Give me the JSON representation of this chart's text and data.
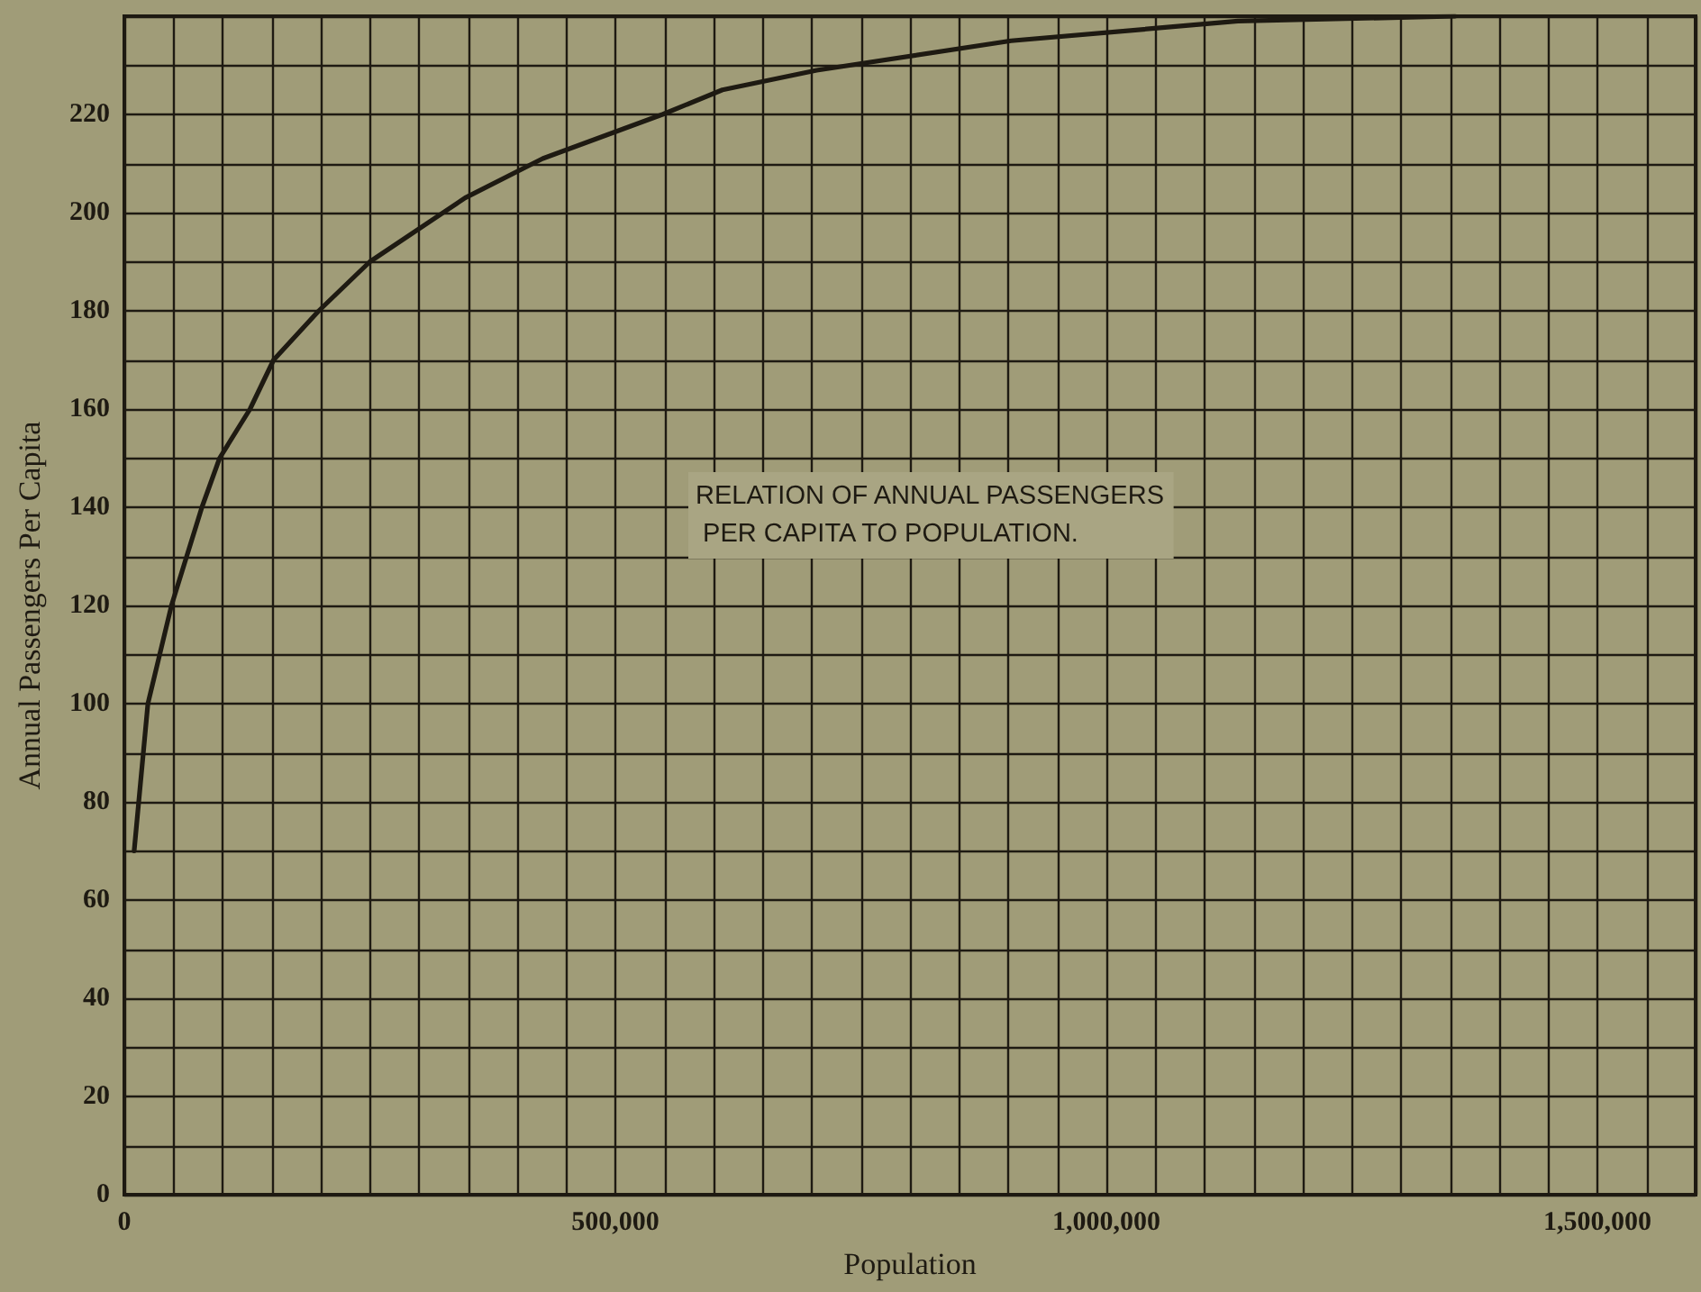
{
  "chart_data": {
    "type": "line",
    "xlabel": "Population",
    "ylabel": "Annual Passengers Per Capita",
    "annotations": [
      "RELATION OF ANNUAL PASSENGERS\n PER CAPITA TO POPULATION."
    ],
    "x": [
      10000,
      24000,
      48000,
      79000,
      97000,
      128000,
      152000,
      198000,
      250000,
      347000,
      426000,
      548000,
      609000,
      705000,
      903000,
      1134000,
      1355000
    ],
    "series": [
      {
        "color": "#1e1a12",
        "values": [
          70,
          100,
          120,
          140,
          150,
          160,
          170,
          180,
          190,
          203,
          211,
          220,
          225,
          229,
          235,
          239,
          240
        ]
      }
    ],
    "xlim": [
      0,
      1600000
    ],
    "ylim": [
      0,
      240
    ],
    "xticks": [
      0,
      {
        "value": 50000,
        "label": null
      },
      {
        "value": 100000,
        "label": null
      },
      {
        "value": 150000,
        "label": null
      },
      {
        "value": 200000,
        "label": null
      },
      {
        "value": 250000,
        "label": null
      },
      {
        "value": 300000,
        "label": null
      },
      {
        "value": 350000,
        "label": null
      },
      {
        "value": 400000,
        "label": null
      },
      {
        "value": 450000,
        "label": null
      },
      {
        "value": 500000,
        "label": "500,000"
      },
      {
        "value": 550000,
        "label": null
      },
      {
        "value": 600000,
        "label": null
      },
      {
        "value": 650000,
        "label": null
      },
      {
        "value": 700000,
        "label": null
      },
      {
        "value": 750000,
        "label": null
      },
      {
        "value": 800000,
        "label": null
      },
      {
        "value": 850000,
        "label": null
      },
      {
        "value": 900000,
        "label": null
      },
      {
        "value": 950000,
        "label": null
      },
      {
        "value": 1000000,
        "label": "1,000,000"
      },
      {
        "value": 1050000,
        "label": null
      },
      {
        "value": 1100000,
        "label": null
      },
      {
        "value": 1150000,
        "label": null
      },
      {
        "value": 1200000,
        "label": null
      },
      {
        "value": 1250000,
        "label": null
      },
      {
        "value": 1300000,
        "label": null
      },
      {
        "value": 1350000,
        "label": null
      },
      {
        "value": 1400000,
        "label": null
      },
      {
        "value": 1450000,
        "label": null
      },
      {
        "value": 1500000,
        "label": "1,500,000"
      },
      {
        "value": 1550000,
        "label": null
      },
      {
        "value": 1600000,
        "label": null
      }
    ],
    "yticks": [
      0,
      {
        "value": 10,
        "label": null
      },
      20,
      {
        "value": 30,
        "label": null
      },
      40,
      {
        "value": 50,
        "label": null
      },
      60,
      {
        "value": 70,
        "label": null
      },
      80,
      {
        "value": 90,
        "label": null
      },
      100,
      {
        "value": 110,
        "label": null
      },
      120,
      {
        "value": 130,
        "label": null
      },
      140,
      {
        "value": 150,
        "label": null
      },
      160,
      {
        "value": 170,
        "label": null
      },
      180,
      {
        "value": 190,
        "label": null
      },
      200,
      {
        "value": 210,
        "label": null
      },
      220,
      {
        "value": 230,
        "label": null
      },
      {
        "value": 240,
        "label": null
      }
    ],
    "grid": true,
    "marker": "none",
    "line_style": "solid"
  }
}
